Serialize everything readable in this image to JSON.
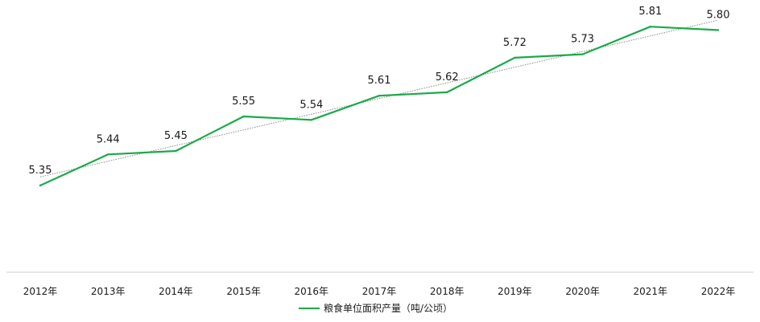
{
  "chart_data": {
    "type": "line",
    "categories": [
      "2012年",
      "2013年",
      "2014年",
      "2015年",
      "2016年",
      "2017年",
      "2018年",
      "2019年",
      "2020年",
      "2021年",
      "2022年"
    ],
    "series": [
      {
        "name": "粮食单位面积产量（吨/公顷）",
        "values": [
          5.35,
          5.44,
          5.45,
          5.55,
          5.54,
          5.61,
          5.62,
          5.72,
          5.73,
          5.81,
          5.8
        ],
        "color": "#1aaa4a"
      }
    ],
    "trendline": {
      "type": "linear",
      "color": "#8a8a8a",
      "style": "dotted"
    },
    "data_labels": [
      "5.35",
      "5.44",
      "5.45",
      "5.55",
      "5.54",
      "5.61",
      "5.62",
      "5.72",
      "5.73",
      "5.81",
      "5.80"
    ],
    "legend": {
      "position": "bottom"
    },
    "grid": false
  }
}
